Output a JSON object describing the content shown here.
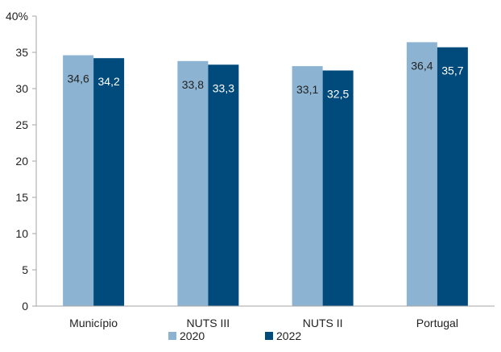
{
  "chart_data": {
    "type": "bar",
    "categories": [
      "Município",
      "NUTS III",
      "NUTS II",
      "Portugal"
    ],
    "series": [
      {
        "name": "2020",
        "values": [
          34.6,
          33.8,
          33.1,
          36.4
        ],
        "labels": [
          "34,6",
          "33,8",
          "33,1",
          "36,4"
        ],
        "color": "#8cb4d2"
      },
      {
        "name": "2022",
        "values": [
          34.2,
          33.3,
          32.5,
          35.7
        ],
        "labels": [
          "34,2",
          "33,3",
          "32,5",
          "35,7"
        ],
        "color": "#004a7c"
      }
    ],
    "y_ticks": [
      "0",
      "5",
      "10",
      "15",
      "20",
      "25",
      "30",
      "35",
      "40%"
    ],
    "ylim": [
      0,
      40
    ],
    "grid": false,
    "legend_position": "bottom",
    "data_label_colors": [
      "#222222",
      "#ffffff"
    ]
  }
}
